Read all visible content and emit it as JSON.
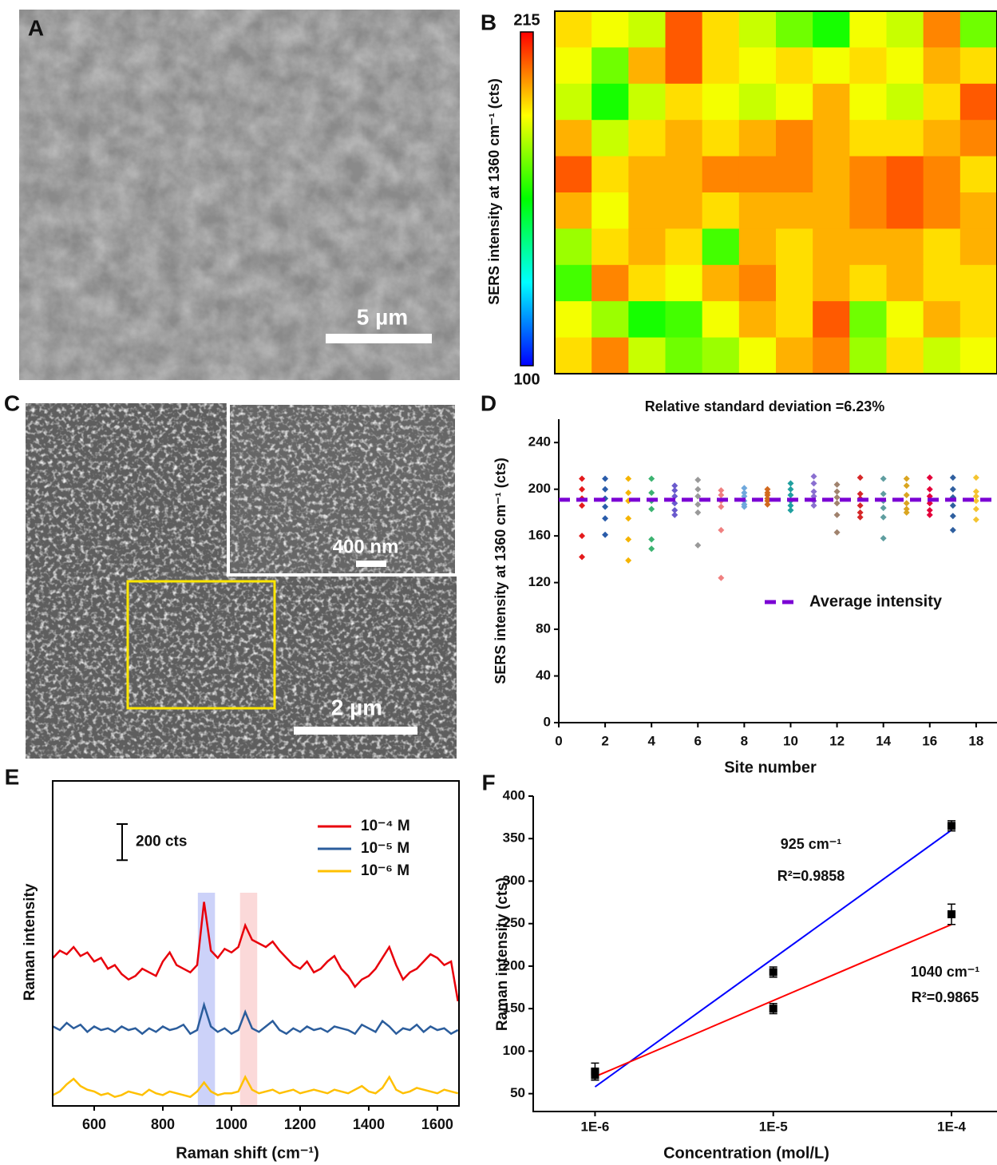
{
  "panel_labels": [
    "A",
    "B",
    "C",
    "D",
    "E",
    "F"
  ],
  "image_A": {
    "scale_bar_label": "5 µm"
  },
  "image_C": {
    "scale_bar_label": "2 µm",
    "inset_scale_bar_label": "400 nm"
  },
  "chart_data": [
    {
      "type": "heatmap",
      "ylabel": "SERS intensity at 1360 cm⁻¹ (cts)",
      "zlim": [
        100,
        215
      ],
      "colorbar_ticks": [
        100,
        215
      ],
      "colorscale": [
        "#0000ff",
        "#00ffff",
        "#00ff00",
        "#ffff00",
        "#ff0000"
      ],
      "z": [
        [
          190,
          185,
          180,
          205,
          190,
          180,
          170,
          160,
          185,
          180,
          200,
          170
        ],
        [
          185,
          170,
          195,
          205,
          190,
          185,
          190,
          185,
          190,
          185,
          195,
          190
        ],
        [
          180,
          160,
          180,
          190,
          185,
          180,
          185,
          195,
          185,
          180,
          190,
          205
        ],
        [
          195,
          180,
          190,
          195,
          190,
          195,
          200,
          195,
          190,
          190,
          195,
          200
        ],
        [
          205,
          190,
          195,
          195,
          200,
          200,
          200,
          195,
          200,
          205,
          200,
          190
        ],
        [
          195,
          185,
          195,
          195,
          190,
          195,
          195,
          195,
          200,
          205,
          200,
          195
        ],
        [
          175,
          190,
          195,
          190,
          165,
          195,
          190,
          195,
          195,
          195,
          190,
          195
        ],
        [
          165,
          200,
          190,
          185,
          195,
          200,
          190,
          195,
          190,
          195,
          190,
          190
        ],
        [
          185,
          175,
          160,
          165,
          185,
          195,
          190,
          205,
          170,
          185,
          195,
          190
        ],
        [
          190,
          200,
          180,
          170,
          175,
          185,
          195,
          200,
          175,
          190,
          180,
          185
        ]
      ]
    },
    {
      "type": "scatter",
      "title": "Relative standard deviation =6.23%",
      "xlabel": "Site number",
      "ylabel": "SERS intensity at 1360 cm⁻¹ (cts)",
      "xlim": [
        0,
        18.9
      ],
      "ylim": [
        0,
        260
      ],
      "xticks": [
        0,
        2,
        4,
        6,
        8,
        10,
        12,
        14,
        16,
        18
      ],
      "yticks": [
        0,
        40,
        80,
        120,
        160,
        200,
        240
      ],
      "reference_line": {
        "value": 191,
        "label": "Average intensity",
        "color": "#7b00d4"
      },
      "series": [
        {
          "color": "#e41a1c",
          "x": [
            1,
            1,
            1,
            1,
            1,
            1
          ],
          "values": [
            209,
            200,
            192,
            186,
            160,
            142
          ]
        },
        {
          "color": "#2a5caa",
          "x": [
            2,
            2,
            2,
            2,
            2,
            2
          ],
          "values": [
            209,
            200,
            192,
            185,
            175,
            161
          ]
        },
        {
          "color": "#f5b400",
          "x": [
            3,
            3,
            3,
            3,
            3,
            3
          ],
          "values": [
            209,
            197,
            190,
            175,
            157,
            139
          ]
        },
        {
          "color": "#3cb371",
          "x": [
            4,
            4,
            4,
            4,
            4,
            4
          ],
          "values": [
            209,
            197,
            190,
            183,
            157,
            149
          ]
        },
        {
          "color": "#6a5acd",
          "x": [
            5,
            5,
            5,
            5,
            5,
            5
          ],
          "values": [
            203,
            199,
            194,
            188,
            182,
            178
          ]
        },
        {
          "color": "#999999",
          "x": [
            6,
            6,
            6,
            6,
            6,
            6
          ],
          "values": [
            208,
            200,
            194,
            187,
            180,
            152
          ]
        },
        {
          "color": "#f08080",
          "x": [
            7,
            7,
            7,
            7,
            7,
            7
          ],
          "values": [
            199,
            195,
            190,
            185,
            165,
            124
          ]
        },
        {
          "color": "#6fa8dc",
          "x": [
            8,
            8,
            8,
            8,
            8,
            8
          ],
          "values": [
            201,
            197,
            194,
            190,
            187,
            185
          ]
        },
        {
          "color": "#d2691e",
          "x": [
            9,
            9,
            9,
            9,
            9,
            9
          ],
          "values": [
            200,
            197,
            195,
            192,
            190,
            187
          ]
        },
        {
          "color": "#20a0a0",
          "x": [
            10,
            10,
            10,
            10,
            10,
            10
          ],
          "values": [
            205,
            200,
            195,
            190,
            186,
            182
          ]
        },
        {
          "color": "#8a6fd0",
          "x": [
            11,
            11,
            11,
            11,
            11,
            11
          ],
          "values": [
            211,
            205,
            198,
            194,
            190,
            186
          ]
        },
        {
          "color": "#a0826d",
          "x": [
            12,
            12,
            12,
            12,
            12,
            12
          ],
          "values": [
            204,
            198,
            193,
            188,
            178,
            163
          ]
        },
        {
          "color": "#d62728",
          "x": [
            13,
            13,
            13,
            13,
            13,
            13
          ],
          "values": [
            210,
            196,
            192,
            186,
            180,
            176
          ]
        },
        {
          "color": "#5f9ea0",
          "x": [
            14,
            14,
            14,
            14,
            14,
            14
          ],
          "values": [
            209,
            196,
            190,
            184,
            176,
            158
          ]
        },
        {
          "color": "#daa520",
          "x": [
            15,
            15,
            15,
            15,
            15,
            15
          ],
          "values": [
            209,
            203,
            195,
            188,
            183,
            180
          ]
        },
        {
          "color": "#e4003a",
          "x": [
            16,
            16,
            16,
            16,
            16,
            16
          ],
          "values": [
            210,
            200,
            194,
            188,
            182,
            178
          ]
        },
        {
          "color": "#2f5f9f",
          "x": [
            17,
            17,
            17,
            17,
            17,
            17
          ],
          "values": [
            210,
            200,
            193,
            186,
            177,
            165
          ]
        },
        {
          "color": "#f4c430",
          "x": [
            18,
            18,
            18,
            18,
            18,
            18
          ],
          "values": [
            210,
            198,
            194,
            190,
            183,
            174
          ]
        }
      ]
    },
    {
      "type": "line",
      "xlabel": "Raman shift  (cm⁻¹)",
      "ylabel": "Raman intensity",
      "xlim": [
        479,
        1663
      ],
      "ylim": [
        0,
        1800
      ],
      "xticks": [
        600,
        800,
        1000,
        1200,
        1400,
        1600
      ],
      "scale_bar": {
        "value": 200,
        "label": "200 cts"
      },
      "highlight_bands": [
        {
          "range": [
            902,
            952
          ],
          "color": "#aab4f5"
        },
        {
          "range": [
            1025,
            1075
          ],
          "color": "#f8c0c0"
        }
      ],
      "x": [
        480,
        500,
        520,
        540,
        560,
        580,
        600,
        620,
        640,
        660,
        680,
        700,
        720,
        740,
        760,
        780,
        800,
        820,
        840,
        860,
        880,
        900,
        920,
        940,
        960,
        980,
        1000,
        1020,
        1040,
        1060,
        1080,
        1100,
        1120,
        1140,
        1160,
        1180,
        1200,
        1220,
        1240,
        1260,
        1280,
        1300,
        1320,
        1340,
        1360,
        1380,
        1400,
        1420,
        1440,
        1460,
        1480,
        1500,
        1520,
        1540,
        1560,
        1580,
        1600,
        1620,
        1640,
        1660
      ],
      "series": [
        {
          "name": "10⁻⁴ M",
          "color": "#e8000b",
          "values": [
            820,
            860,
            840,
            880,
            830,
            850,
            800,
            820,
            760,
            780,
            730,
            700,
            720,
            760,
            740,
            720,
            800,
            850,
            780,
            760,
            740,
            780,
            1130,
            860,
            820,
            870,
            850,
            880,
            1000,
            920,
            900,
            880,
            910,
            860,
            820,
            780,
            760,
            800,
            740,
            760,
            800,
            830,
            760,
            720,
            660,
            700,
            720,
            760,
            820,
            880,
            780,
            700,
            740,
            760,
            800,
            840,
            820,
            780,
            800,
            580
          ]
        },
        {
          "name": "10⁻⁵ M",
          "color": "#2b5d9c",
          "values": [
            440,
            420,
            460,
            430,
            450,
            410,
            440,
            420,
            430,
            410,
            440,
            420,
            430,
            400,
            430,
            410,
            440,
            420,
            430,
            450,
            400,
            420,
            560,
            440,
            410,
            430,
            400,
            420,
            520,
            430,
            410,
            440,
            470,
            420,
            400,
            430,
            410,
            440,
            420,
            430,
            410,
            440,
            430,
            420,
            400,
            450,
            430,
            410,
            470,
            440,
            400,
            430,
            420,
            450,
            410,
            440,
            420,
            430,
            400,
            420
          ]
        },
        {
          "name": "10⁻⁶ M",
          "color": "#ffc000",
          "values": [
            60,
            80,
            120,
            150,
            110,
            90,
            80,
            60,
            70,
            50,
            60,
            80,
            70,
            60,
            90,
            70,
            60,
            80,
            70,
            60,
            50,
            80,
            130,
            80,
            60,
            70,
            70,
            80,
            160,
            90,
            70,
            80,
            90,
            70,
            80,
            90,
            70,
            80,
            90,
            80,
            70,
            90,
            80,
            70,
            90,
            110,
            80,
            70,
            100,
            160,
            90,
            70,
            80,
            100,
            90,
            80,
            70,
            90,
            80,
            70
          ]
        }
      ]
    },
    {
      "type": "scatter",
      "xlabel": "Concentration (mol/L)",
      "ylabel": "Raman intensity (cts)",
      "log_x": true,
      "xlim": [
        4.5e-07,
        0.00018
      ],
      "ylim": [
        29,
        400
      ],
      "xticks": [
        {
          "value": 1e-06,
          "label": "1E-6"
        },
        {
          "value": 1e-05,
          "label": "1E-5"
        },
        {
          "value": 0.0001,
          "label": "1E-4"
        }
      ],
      "yticks": [
        50,
        100,
        150,
        200,
        250,
        300,
        350,
        400
      ],
      "x": [
        1e-06,
        1e-05,
        0.0001
      ],
      "series": [
        {
          "color": "#000000",
          "values": [
            76,
            193,
            365
          ],
          "errors": [
            10,
            6,
            6
          ],
          "fit": {
            "color": "#0000ff",
            "x": [
              1e-06,
              0.0001
            ],
            "values": [
              58,
              360
            ]
          },
          "annotations": [
            "925 cm⁻¹",
            "R²=0.9858"
          ]
        },
        {
          "color": "#000000",
          "values": [
            72,
            150,
            261
          ],
          "errors": [
            6,
            6,
            12
          ],
          "fit": {
            "color": "#ff0000",
            "x": [
              1e-06,
              0.0001
            ],
            "values": [
              70,
              249
            ]
          },
          "annotations": [
            "1040 cm⁻¹",
            "R²=0.9865"
          ]
        }
      ]
    }
  ]
}
